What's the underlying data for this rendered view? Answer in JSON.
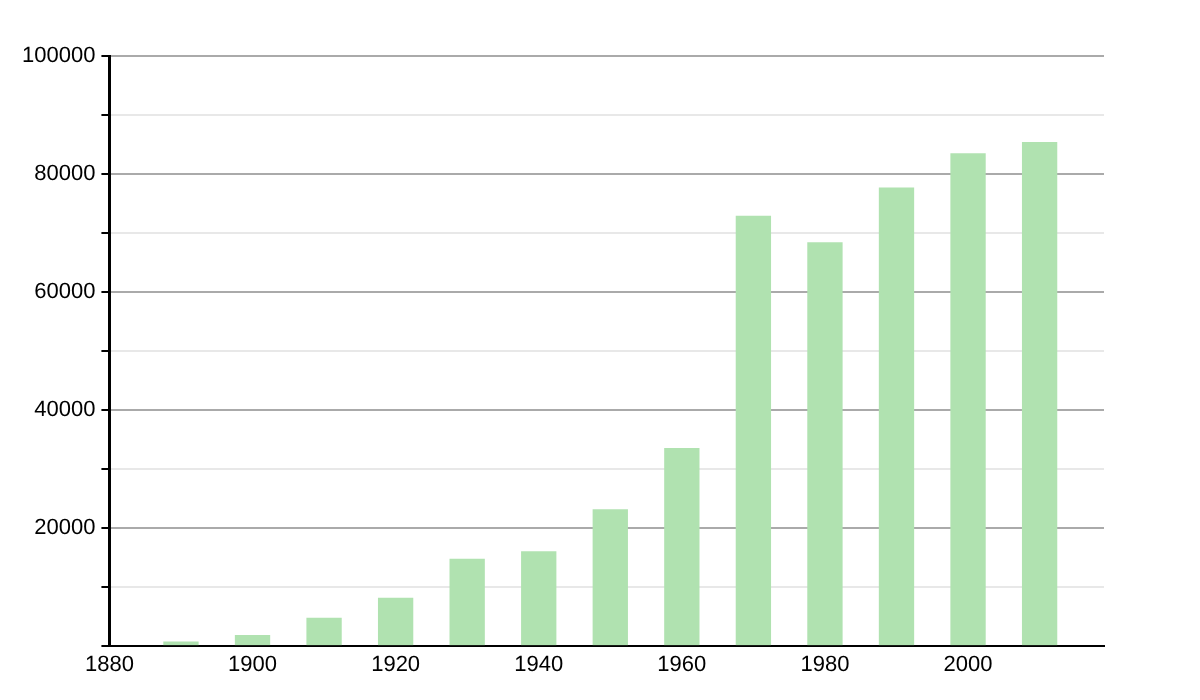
{
  "chart_data": {
    "type": "bar",
    "x": [
      1890,
      1900,
      1910,
      1920,
      1930,
      1940,
      1950,
      1960,
      1970,
      1980,
      1990,
      2000,
      2010
    ],
    "values": [
      600,
      1700,
      4600,
      8000,
      14600,
      15900,
      23000,
      33400,
      72800,
      68300,
      77600,
      83400,
      85300
    ],
    "color": "#b0e2b0",
    "xlim": [
      1880,
      2019
    ],
    "xticks": [
      1880,
      1900,
      1920,
      1940,
      1960,
      1980,
      2000
    ],
    "ylim": [
      0,
      100000
    ],
    "yticks": [
      {
        "value": 0,
        "label": null
      },
      {
        "value": 10000,
        "label": null
      },
      20000,
      {
        "value": 30000,
        "label": null
      },
      40000,
      {
        "value": 50000,
        "label": null
      },
      60000,
      {
        "value": 70000,
        "label": null
      },
      80000,
      {
        "value": 90000,
        "label": null
      },
      100000
    ],
    "grid": "y"
  }
}
